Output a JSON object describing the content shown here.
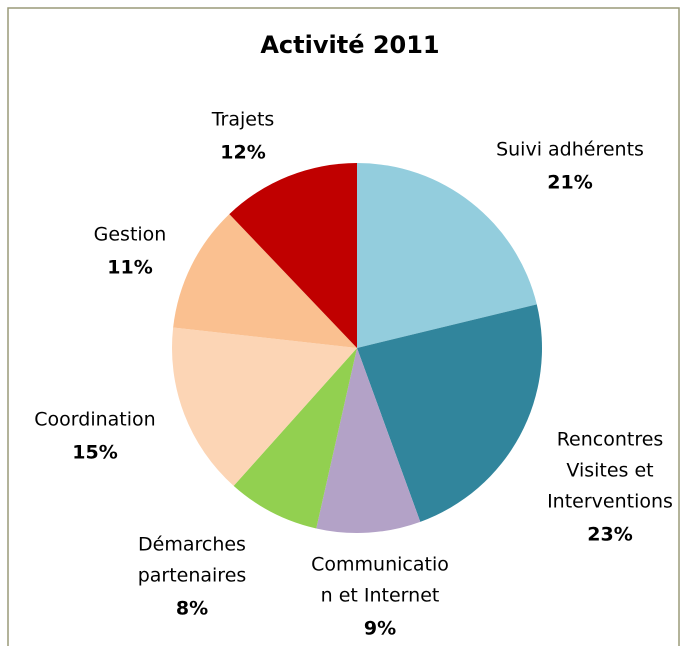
{
  "chart_data": {
    "type": "pie",
    "title": "Activité 2011",
    "categories": [
      [
        "Suivi adhérents"
      ],
      [
        "Rencontres",
        "Visites et",
        "Interventions"
      ],
      [
        "Communicatio",
        "n et Internet"
      ],
      [
        "Démarches",
        "partenaires"
      ],
      [
        "Coordination"
      ],
      [
        "Gestion"
      ],
      [
        "Trajets"
      ]
    ],
    "values": [
      21,
      23,
      9,
      8,
      15,
      11,
      12
    ],
    "value_labels": [
      "21%",
      "23%",
      "9%",
      "8%",
      "15%",
      "11%",
      "12%"
    ],
    "colors": [
      "#93cddd",
      "#31859c",
      "#b3a2c7",
      "#92d050",
      "#fcd5b5",
      "#fac090",
      "#c00000"
    ]
  }
}
